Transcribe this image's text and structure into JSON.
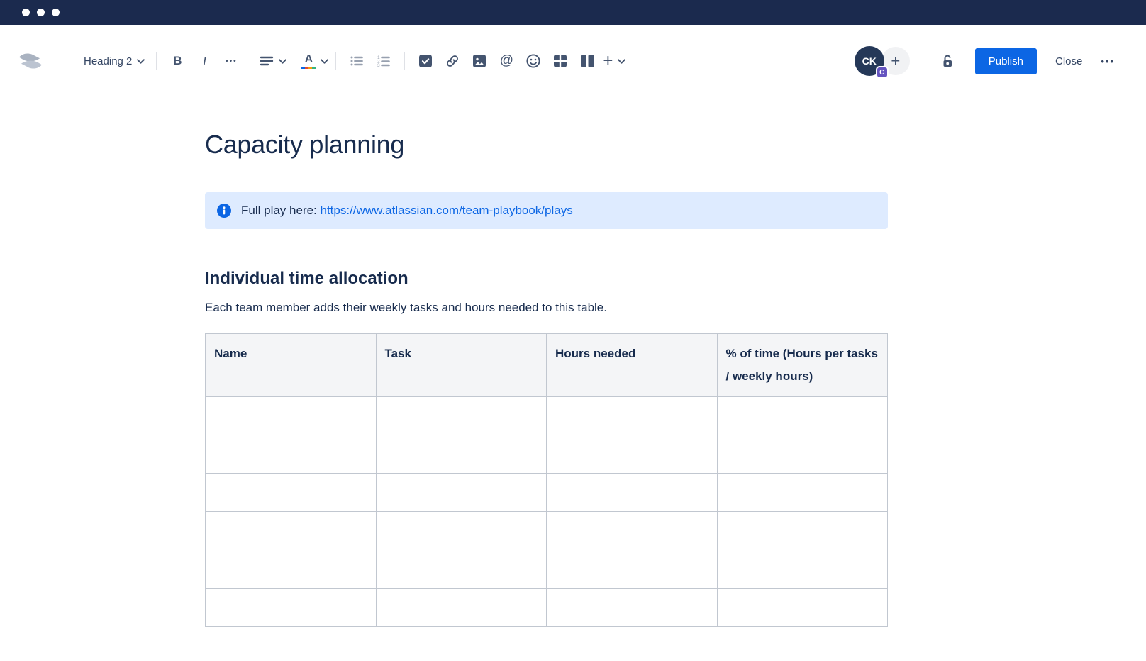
{
  "window": {
    "traffic_light_count": 3
  },
  "toolbar": {
    "text_style_label": "Heading 2",
    "glyphs": {
      "bold": "B",
      "italic": "I",
      "more": "•••",
      "mention": "@",
      "insert_plus": "+",
      "add_collaborator": "+",
      "overflow": "•••",
      "text_color_letter": "A"
    },
    "avatar_initials": "CK",
    "avatar_badge": "C",
    "publish_label": "Publish",
    "close_label": "Close",
    "icon_names": [
      "confluence-logo",
      "chevron-down",
      "bold",
      "italic",
      "more-formatting",
      "align-left",
      "text-color",
      "bullet-list",
      "numbered-list",
      "task-list",
      "link",
      "image",
      "mention",
      "emoji",
      "table",
      "layouts",
      "insert-plus",
      "unlock"
    ]
  },
  "document": {
    "title": "Capacity planning",
    "info_panel": {
      "text": "Full play here: ",
      "link_text": "https://www.atlassian.com/team-playbook/plays"
    },
    "section_heading": "Individual time allocation",
    "section_description": "Each team member adds their weekly tasks and hours needed to this table.",
    "table": {
      "headers": [
        "Name",
        "Task",
        "Hours needed",
        "% of time (Hours per tasks / weekly hours)"
      ],
      "rows": [
        [
          "",
          "",
          "",
          ""
        ],
        [
          "",
          "",
          "",
          ""
        ],
        [
          "",
          "",
          "",
          ""
        ],
        [
          "",
          "",
          "",
          ""
        ],
        [
          "",
          "",
          "",
          ""
        ],
        [
          "",
          "",
          "",
          ""
        ]
      ]
    }
  },
  "colors": {
    "titlebar": "#1B2A4E",
    "accent_blue": "#0C66E4",
    "info_panel_bg": "#DEEBFF",
    "link": "#0C66E4",
    "text_primary": "#172B4D",
    "toolbar_icon": "#44546F",
    "muted_icon": "#97A0AF",
    "table_border": "#C1C7D0",
    "table_header_bg": "#F4F5F7",
    "avatar_bg": "#253858",
    "badge_purple": "#6554C0"
  }
}
